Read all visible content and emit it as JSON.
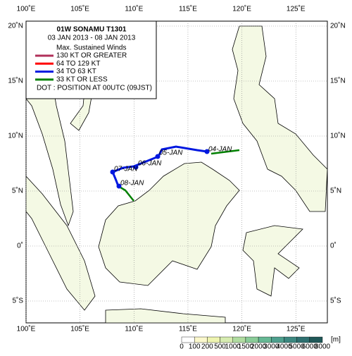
{
  "map": {
    "title": "01W  SONAMU  T1301",
    "period": "03 JAN 2013 - 08 JAN 2013",
    "legend": {
      "heading": "Max. Sustained Winds",
      "entries": [
        {
          "label": "130 KT OR GREATER",
          "color": "#b0305a"
        },
        {
          "label": "64 TO 129 KT",
          "color": "#ff0000"
        },
        {
          "label": "34 TO 63 KT",
          "color": "#0018e0"
        },
        {
          "label": "33 KT OR LESS",
          "color": "#008000"
        }
      ],
      "note": "DOT : POSITION AT 00UTC (09JST)"
    },
    "lon_ticks": [
      {
        "value": 100,
        "label": "100˚E"
      },
      {
        "value": 105,
        "label": "105˚E"
      },
      {
        "value": 110,
        "label": "110˚E"
      },
      {
        "value": 115,
        "label": "115˚E"
      },
      {
        "value": 120,
        "label": "120˚E"
      },
      {
        "value": 125,
        "label": "125˚E"
      }
    ],
    "lat_ticks": [
      {
        "value": 20,
        "label": "20˚N"
      },
      {
        "value": 15,
        "label": "15˚N"
      },
      {
        "value": 10,
        "label": "10˚N"
      },
      {
        "value": 5,
        "label": "5˚N"
      },
      {
        "value": 0,
        "label": "0˚"
      },
      {
        "value": -5,
        "label": "5˚S"
      }
    ],
    "date_labels": [
      "04-JAN",
      "05-JAN",
      "06-JAN",
      "07-JAN",
      "08-JAN"
    ],
    "colorbar": {
      "labels": [
        "0",
        "100",
        "200",
        "500",
        "1000",
        "1500",
        "2000",
        "3000",
        "4000",
        "5000",
        "6000",
        "8000"
      ],
      "unit": "[m]"
    }
  }
}
